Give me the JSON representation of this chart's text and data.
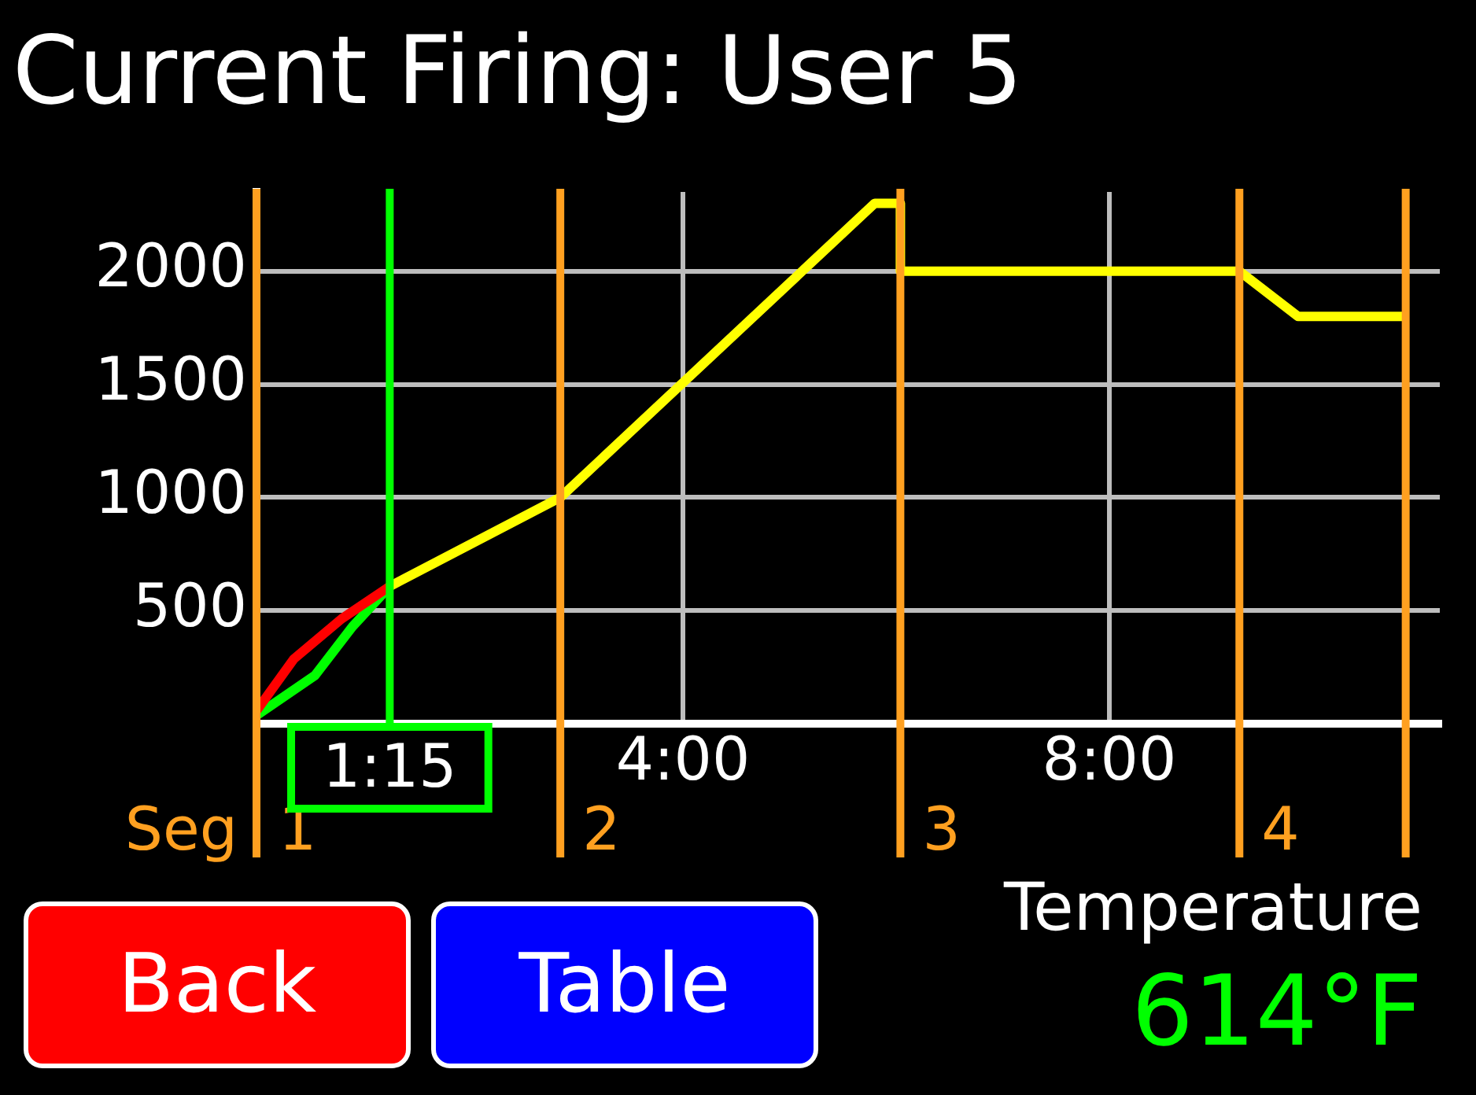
{
  "chart_data": {
    "type": "line",
    "title": "Current Firing: User 5",
    "xlim": [
      0,
      11.1
    ],
    "xticks": [
      {
        "value": 4,
        "label": "4:00"
      },
      {
        "value": 8,
        "label": "8:00"
      }
    ],
    "ylim": [
      0,
      2350
    ],
    "yticks": [
      500,
      1000,
      1500,
      2000
    ],
    "grid": true,
    "legend": false,
    "marker": "none",
    "line_style": "solid",
    "series": [
      {
        "color": "#ffff00",
        "x": [
          1.25,
          2.85,
          5.8,
          6.04,
          6.04,
          9.22,
          9.77,
          10.78
        ],
        "values": [
          607,
          1000,
          2300,
          2300,
          2000,
          2000,
          1800,
          1800
        ]
      },
      {
        "color": "#ff0000",
        "x": [
          0,
          0.35,
          0.8,
          1.25
        ],
        "values": [
          57,
          286,
          464,
          607
        ]
      },
      {
        "color": "#00ff00",
        "x": [
          0,
          0.55,
          0.9,
          1.25
        ],
        "values": [
          36,
          214,
          429,
          607
        ]
      }
    ],
    "ref_lines": [
      {
        "axis": "x",
        "value": 0,
        "label": null,
        "color": "#ffa020"
      },
      {
        "axis": "x",
        "value": 2.85,
        "label": null,
        "color": "#ffa020"
      },
      {
        "axis": "x",
        "value": 6.04,
        "label": null,
        "color": "#ffa020"
      },
      {
        "axis": "x",
        "value": 9.22,
        "label": null,
        "color": "#ffa020"
      },
      {
        "axis": "x",
        "value": 10.78,
        "label": null,
        "color": "#ffa020"
      },
      {
        "axis": "x",
        "value": 1.25,
        "label": "1:15",
        "color": "#00ff00"
      }
    ],
    "annotations": [
      "Seg",
      "1",
      "2",
      "3",
      "4",
      "Back",
      "Table",
      "Temperature",
      "614°F"
    ]
  }
}
